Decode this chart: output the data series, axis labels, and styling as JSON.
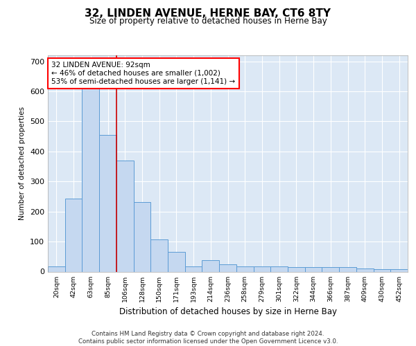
{
  "title": "32, LINDEN AVENUE, HERNE BAY, CT6 8TY",
  "subtitle": "Size of property relative to detached houses in Herne Bay",
  "xlabel": "Distribution of detached houses by size in Herne Bay",
  "ylabel": "Number of detached properties",
  "bar_color": "#c5d8f0",
  "bar_edge_color": "#5b9bd5",
  "background_color": "#dce8f5",
  "grid_color": "#ffffff",
  "categories": [
    "20sqm",
    "42sqm",
    "63sqm",
    "85sqm",
    "106sqm",
    "128sqm",
    "150sqm",
    "171sqm",
    "193sqm",
    "214sqm",
    "236sqm",
    "258sqm",
    "279sqm",
    "301sqm",
    "322sqm",
    "344sqm",
    "366sqm",
    "387sqm",
    "409sqm",
    "430sqm",
    "452sqm"
  ],
  "values": [
    18,
    242,
    638,
    455,
    370,
    232,
    108,
    65,
    18,
    38,
    25,
    18,
    18,
    18,
    15,
    15,
    15,
    15,
    10,
    8,
    8
  ],
  "property_line_color": "#cc0000",
  "property_line_x": 3.5,
  "annotation_text": "32 LINDEN AVENUE: 92sqm\n← 46% of detached houses are smaller (1,002)\n53% of semi-detached houses are larger (1,141) →",
  "ylim": [
    0,
    720
  ],
  "yticks": [
    0,
    100,
    200,
    300,
    400,
    500,
    600,
    700
  ],
  "footer_line1": "Contains HM Land Registry data © Crown copyright and database right 2024.",
  "footer_line2": "Contains public sector information licensed under the Open Government Licence v3.0."
}
